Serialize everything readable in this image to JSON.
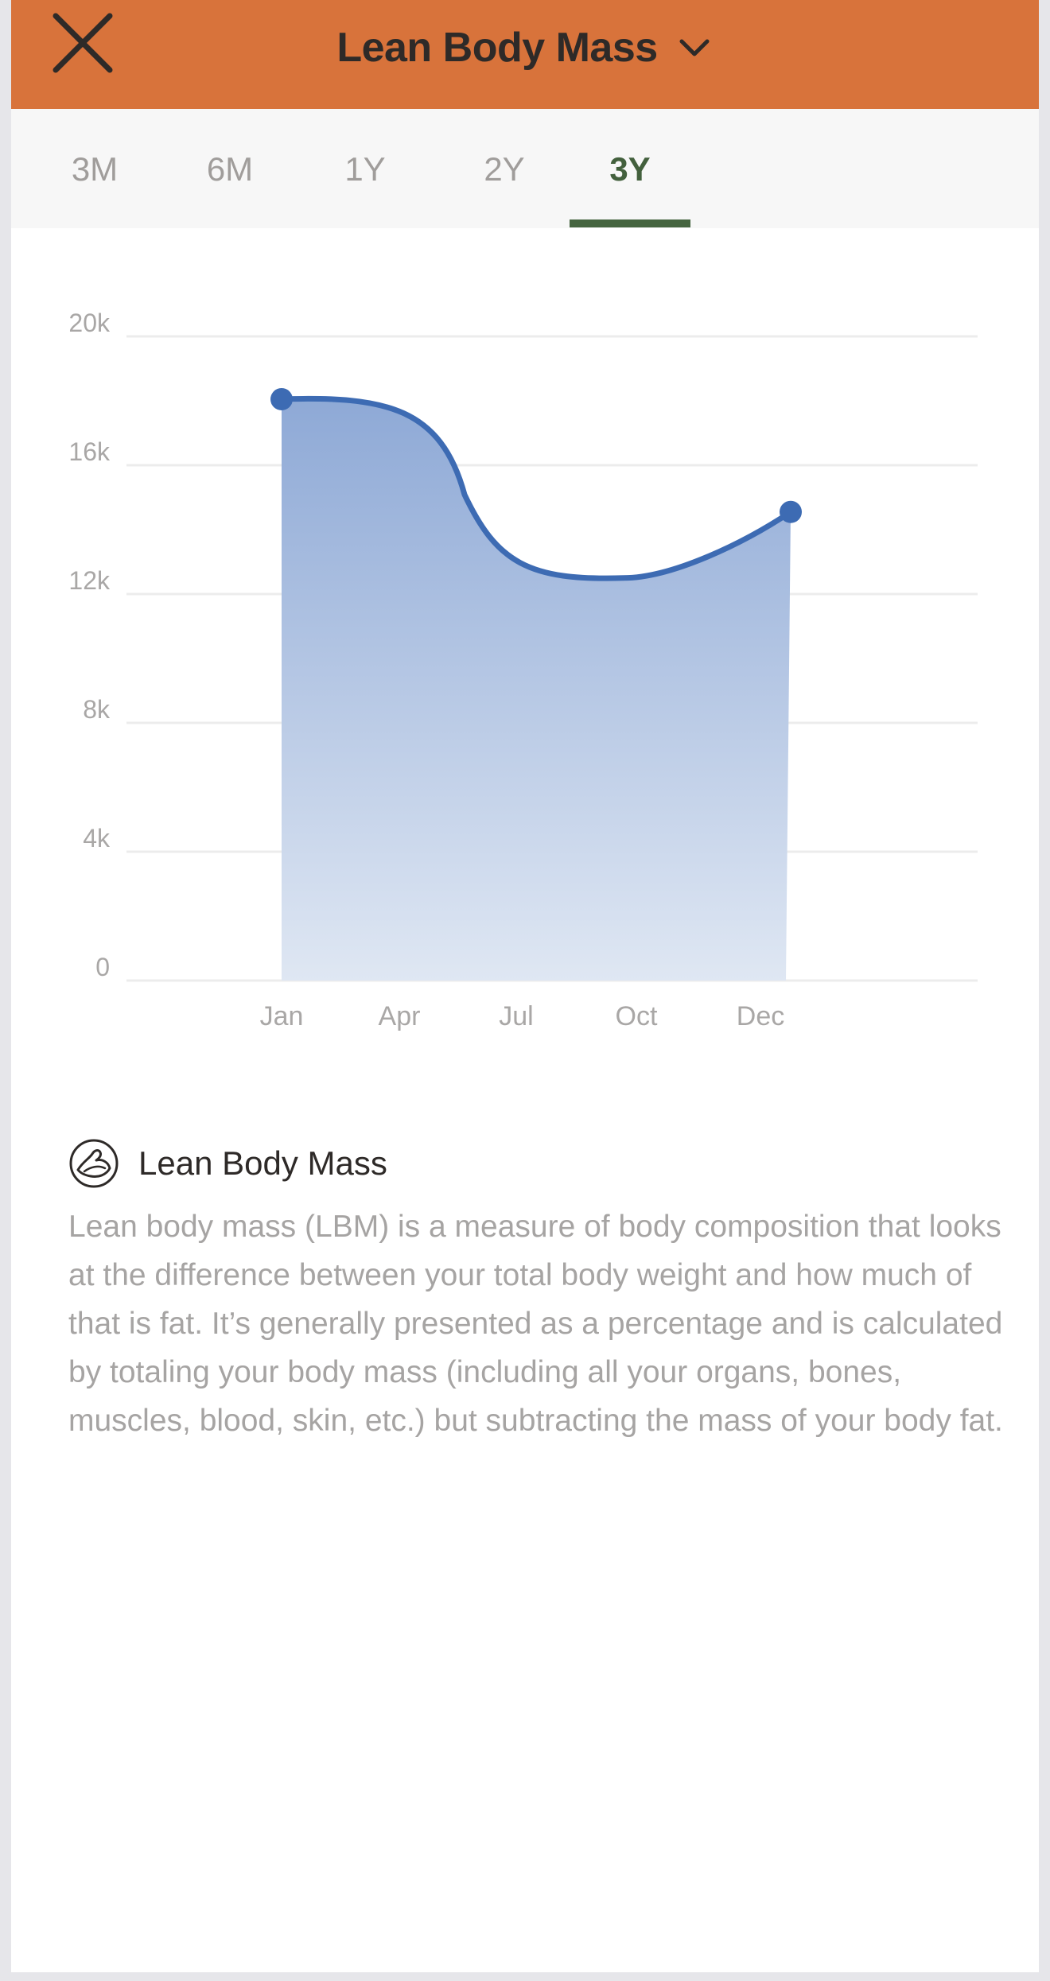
{
  "header": {
    "title": "Lean Body Mass",
    "close_icon": "close-icon",
    "dropdown_icon": "chevron-down-icon",
    "background_color": "#d8733b"
  },
  "tabs": [
    {
      "label": "3M",
      "active": false
    },
    {
      "label": "6M",
      "active": false
    },
    {
      "label": "1Y",
      "active": false
    },
    {
      "label": "2Y",
      "active": false
    },
    {
      "label": "3Y",
      "active": true
    }
  ],
  "chart_data": {
    "type": "area",
    "title": "",
    "xlabel": "",
    "ylabel": "",
    "categories": [
      "Jan",
      "Apr",
      "Jul",
      "Oct",
      "Dec"
    ],
    "y_ticks": [
      "20k",
      "16k",
      "12k",
      "8k",
      "4k",
      "0"
    ],
    "ylim": [
      0,
      20000
    ],
    "grid": true,
    "series": [
      {
        "color": "#3d6bb3",
        "points": [
          {
            "x": "Jan",
            "y": 18050
          },
          {
            "x": "Dec",
            "y": 14550
          }
        ],
        "curve_min": {
          "x": "Oct",
          "y": 12500
        }
      }
    ]
  },
  "description": {
    "icon": "muscle-arm-icon",
    "title": "Lean Body Mass",
    "text": "Lean body mass (LBM) is a measure of body composition that looks at the difference between your total body weight and how much of that is fat. It’s generally presented as a percentage and is calculated by totaling your body mass (including all your organs, bones, muscles, blood, skin, etc.) but subtracting the mass of your body fat."
  }
}
